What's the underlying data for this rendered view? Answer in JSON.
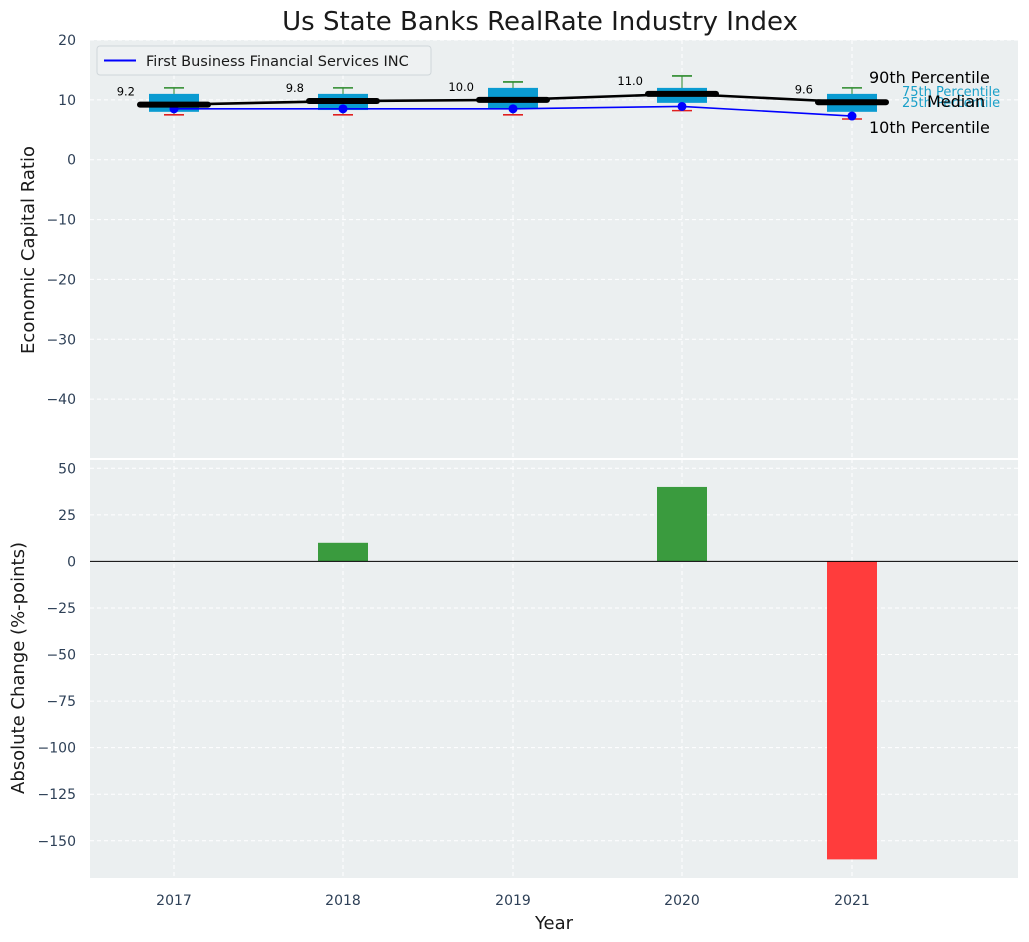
{
  "chart_data": [
    {
      "type": "box",
      "title": "Us State Banks RealRate Industry Index",
      "xlabel": "",
      "ylabel": "Economic Capital Ratio",
      "ylim": [
        -50,
        20
      ],
      "yticks": [
        20,
        10,
        0,
        -10,
        -20,
        -30,
        -40
      ],
      "categories": [
        "2017",
        "2018",
        "2019",
        "2020",
        "2021"
      ],
      "boxes": [
        {
          "year": "2017",
          "p10": 7.5,
          "q1": 8.0,
          "median": 9.2,
          "q3": 11.0,
          "p90": 12.0
        },
        {
          "year": "2018",
          "p10": 7.5,
          "q1": 8.3,
          "median": 9.8,
          "q3": 11.0,
          "p90": 12.0
        },
        {
          "year": "2019",
          "p10": 7.5,
          "q1": 8.5,
          "median": 10.0,
          "q3": 12.0,
          "p90": 13.0
        },
        {
          "year": "2020",
          "p10": 8.2,
          "q1": 9.5,
          "median": 11.0,
          "q3": 12.0,
          "p90": 14.0
        },
        {
          "year": "2021",
          "p10": 6.8,
          "q1": 8.0,
          "median": 9.6,
          "q3": 11.0,
          "p90": 12.0
        }
      ],
      "median_labels": [
        "9.2",
        "9.8",
        "10.0",
        "11.0",
        "9.6"
      ],
      "series": [
        {
          "name": "First Business Financial Services INC",
          "values": [
            8.5,
            8.5,
            8.5,
            8.9,
            7.3
          ],
          "color": "#0000ff"
        }
      ],
      "legend": "top-left",
      "annotations": [
        "90th Percentile",
        "75th Percentile",
        "Median",
        "25th Percentile",
        "10th Percentile"
      ],
      "grid": true
    },
    {
      "type": "bar",
      "xlabel": "Year",
      "ylabel": "Absolute Change (%-points)",
      "categories": [
        "2017",
        "2018",
        "2019",
        "2020",
        "2021"
      ],
      "values": [
        0,
        10,
        0,
        40,
        -160
      ],
      "ylim": [
        -170,
        55
      ],
      "yticks": [
        50,
        25,
        0,
        -25,
        -50,
        -75,
        -100,
        -125,
        -150
      ],
      "colors": {
        "positive": "#3a9b3e",
        "negative": "#ff3c3c"
      },
      "grid": true
    }
  ],
  "colors": {
    "background": "#ebeff0",
    "box": "#0a9bd1",
    "median": "#000000",
    "whisker_high": "#2a8a2a",
    "whisker_low": "#e02020",
    "company": "#0000ff"
  }
}
